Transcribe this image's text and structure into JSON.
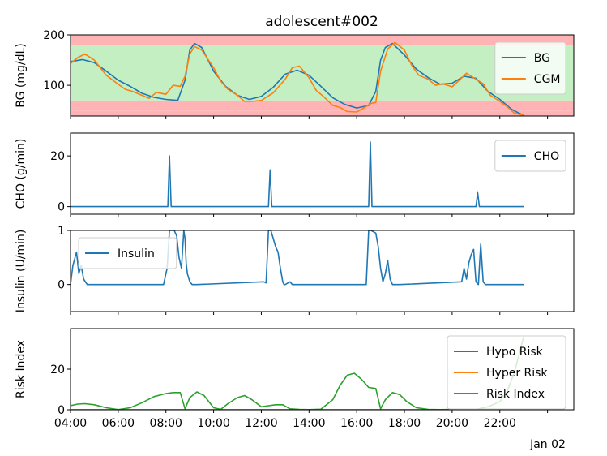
{
  "chart_data": {
    "type": "line",
    "title": "adolescent#002",
    "x_axis": {
      "range_hours": [
        4,
        25.1
      ],
      "tick_hours": [
        4,
        6,
        8,
        10,
        12,
        14,
        16,
        18,
        20,
        22,
        24
      ],
      "tick_labels": [
        "04:00",
        "06:00",
        "08:00",
        "10:00",
        "12:00",
        "14:00",
        "16:00",
        "18:00",
        "20:00",
        "22:00",
        ""
      ],
      "date_label": "Jan 02"
    },
    "panels": [
      {
        "id": "bg",
        "ylabel": "BG (mg/dL)",
        "ylim": [
          39,
          200
        ],
        "yticks": [
          100,
          200
        ],
        "bands": [
          {
            "from": 39,
            "to": 50,
            "color": "#ffb3b5"
          },
          {
            "from": 50,
            "to": 70,
            "color": "#ffb3b5"
          },
          {
            "from": 70,
            "to": 180,
            "color": "#c3efc3"
          },
          {
            "from": 180,
            "to": 200,
            "color": "#ffb3b5"
          }
        ],
        "legend": {
          "position": "upper right",
          "entries": [
            "BG",
            "CGM"
          ]
        },
        "series": [
          {
            "name": "BG",
            "color": "#1f77b4",
            "x": [
              4,
              4.5,
              5,
              5.5,
              6,
              6.5,
              7,
              7.5,
              8,
              8.5,
              8.8,
              9,
              9.2,
              9.5,
              10,
              10.5,
              11,
              11.5,
              12,
              12.5,
              13,
              13.5,
              14,
              14.5,
              15,
              15.5,
              16,
              16.5,
              16.8,
              17,
              17.2,
              17.5,
              18,
              18.5,
              19,
              19.5,
              20,
              20.5,
              21,
              21.5,
              22,
              22.5,
              23
            ],
            "y": [
              147,
              151,
              145,
              128,
              110,
              98,
              84,
              76,
              72,
              70,
              110,
              170,
              183,
              175,
              128,
              98,
              80,
              72,
              78,
              96,
              122,
              130,
              120,
              98,
              75,
              62,
              55,
              60,
              88,
              150,
              175,
              183,
              160,
              132,
              115,
              102,
              104,
              118,
              114,
              88,
              72,
              52,
              40
            ]
          },
          {
            "name": "CGM",
            "color": "#ff7f0e",
            "x": [
              4,
              4.3,
              4.6,
              5,
              5.5,
              6,
              6.3,
              6.6,
              7,
              7.3,
              7.6,
              8,
              8.3,
              8.6,
              8.8,
              9,
              9.2,
              9.5,
              10,
              10.3,
              10.6,
              11,
              11.3,
              11.6,
              12,
              12.5,
              13,
              13.3,
              13.6,
              14,
              14.3,
              14.6,
              15,
              15.3,
              15.6,
              16,
              16.3,
              16.6,
              16.8,
              17,
              17.3,
              17.6,
              18,
              18.3,
              18.6,
              19,
              19.3,
              19.6,
              20,
              20.3,
              20.6,
              21,
              21.3,
              21.6,
              22,
              22.3,
              22.6,
              23
            ],
            "y": [
              143,
              155,
              162,
              150,
              120,
              102,
              92,
              88,
              80,
              74,
              86,
              82,
              100,
              98,
              118,
              162,
              177,
              170,
              135,
              108,
              92,
              80,
              68,
              68,
              70,
              85,
              112,
              135,
              138,
              115,
              90,
              78,
              60,
              56,
              48,
              47,
              55,
              64,
              66,
              128,
              172,
              185,
              170,
              140,
              120,
              112,
              100,
              103,
              97,
              110,
              124,
              112,
              103,
              80,
              68,
              58,
              45,
              40
            ]
          }
        ]
      },
      {
        "id": "cho",
        "ylabel": "CHO (g/min)",
        "ylim": [
          -3,
          29
        ],
        "yticks": [
          0,
          20
        ],
        "legend": {
          "position": "upper right",
          "entries": [
            "CHO"
          ]
        },
        "series": [
          {
            "name": "CHO",
            "color": "#1f77b4",
            "x": [
              4,
              8.08,
              8.15,
              8.22,
              12.3,
              12.37,
              12.44,
              16.5,
              16.57,
              16.64,
              21.0,
              21.07,
              21.14,
              23
            ],
            "y": [
              0,
              0,
              20,
              0,
              0,
              14.5,
              0,
              0,
              25.5,
              0,
              0,
              5.5,
              0,
              0
            ]
          }
        ]
      },
      {
        "id": "insulin",
        "ylabel": "Insulin (U/min)",
        "ylim": [
          -0.5,
          1.0
        ],
        "yticks": [
          0,
          1
        ],
        "legend": {
          "position": "upper left",
          "entries": [
            "Insulin"
          ]
        },
        "series": [
          {
            "name": "Insulin",
            "color": "#1f77b4",
            "x": [
              4,
              4.1,
              4.25,
              4.35,
              4.45,
              4.55,
              4.7,
              4.8,
              5,
              7.9,
              8.05,
              8.15,
              8.2,
              8.35,
              8.45,
              8.55,
              8.65,
              8.75,
              8.8,
              8.85,
              8.9,
              9.0,
              9.1,
              9.3,
              12.1,
              12.2,
              12.3,
              12.4,
              12.5,
              12.6,
              12.7,
              12.8,
              12.9,
              12.95,
              13.0,
              13.2,
              13.3,
              13.4,
              13.5,
              16.4,
              16.5,
              16.6,
              16.8,
              16.9,
              17.0,
              17.1,
              17.2,
              17.3,
              17.4,
              17.5,
              17.6,
              17.8,
              20.4,
              20.5,
              20.6,
              20.7,
              20.8,
              20.9,
              21.0,
              21.1,
              21.2,
              21.3,
              21.4,
              21.5,
              21.6,
              23
            ],
            "y": [
              0,
              0.35,
              0.6,
              0.2,
              0.35,
              0.1,
              0,
              0,
              0,
              0,
              0.3,
              1.0,
              1.0,
              1.0,
              0.9,
              0.5,
              0.3,
              1.0,
              0.85,
              0.4,
              0.2,
              0.05,
              0,
              0,
              0.05,
              0.03,
              1.0,
              1.0,
              0.85,
              0.7,
              0.6,
              0.3,
              0.05,
              0,
              0,
              0.05,
              0,
              0,
              0,
              0,
              1.0,
              1.0,
              0.95,
              0.7,
              0.3,
              0.05,
              0.2,
              0.45,
              0.1,
              0,
              0,
              0,
              0.05,
              0.3,
              0.1,
              0.4,
              0.55,
              0.65,
              0.05,
              0,
              0.75,
              0.05,
              0,
              0,
              0,
              0
            ]
          }
        ]
      },
      {
        "id": "risk",
        "ylabel": "Risk Index",
        "ylim": [
          0,
          40
        ],
        "yticks": [
          0,
          20
        ],
        "legend": {
          "position": "upper right",
          "entries": [
            "Hypo Risk",
            "Hyper Risk",
            "Risk Index"
          ]
        },
        "series": [
          {
            "name": "Hypo Risk",
            "color": "#1f77b4",
            "x": [
              4,
              23
            ],
            "y": [
              0,
              0
            ]
          },
          {
            "name": "Hyper Risk",
            "color": "#ff7f0e",
            "x": [
              4,
              23
            ],
            "y": [
              0,
              0
            ]
          },
          {
            "name": "Risk Index",
            "color": "#2ca02c",
            "x": [
              4,
              4.3,
              4.6,
              5,
              5.5,
              6,
              6.5,
              7,
              7.5,
              8,
              8.3,
              8.6,
              8.8,
              9.0,
              9.3,
              9.6,
              10,
              10.3,
              10.6,
              11,
              11.3,
              11.6,
              12,
              12.3,
              12.6,
              12.9,
              13.2,
              13.6,
              14,
              14.5,
              15,
              15.3,
              15.6,
              15.9,
              16.2,
              16.5,
              16.8,
              17.0,
              17.2,
              17.5,
              17.8,
              18.1,
              18.5,
              19,
              19.5,
              20,
              20.5,
              21,
              21.5,
              22,
              22.3,
              22.6,
              23
            ],
            "y": [
              2,
              2.8,
              3,
              2.5,
              1,
              0.1,
              1,
              3.5,
              6.5,
              8,
              8.5,
              8.5,
              0.5,
              6,
              8.8,
              7,
              1,
              0.2,
              3,
              6,
              7,
              5,
              1.5,
              2,
              2.5,
              2.5,
              0.5,
              0.2,
              0.1,
              0.3,
              5,
              12,
              17,
              18,
              15,
              11,
              10.5,
              0.5,
              5,
              8.5,
              7.5,
              4,
              1,
              0.2,
              0.1,
              0.2,
              0.1,
              0.2,
              1.5,
              4,
              9,
              18,
              36
            ]
          }
        ]
      }
    ]
  }
}
